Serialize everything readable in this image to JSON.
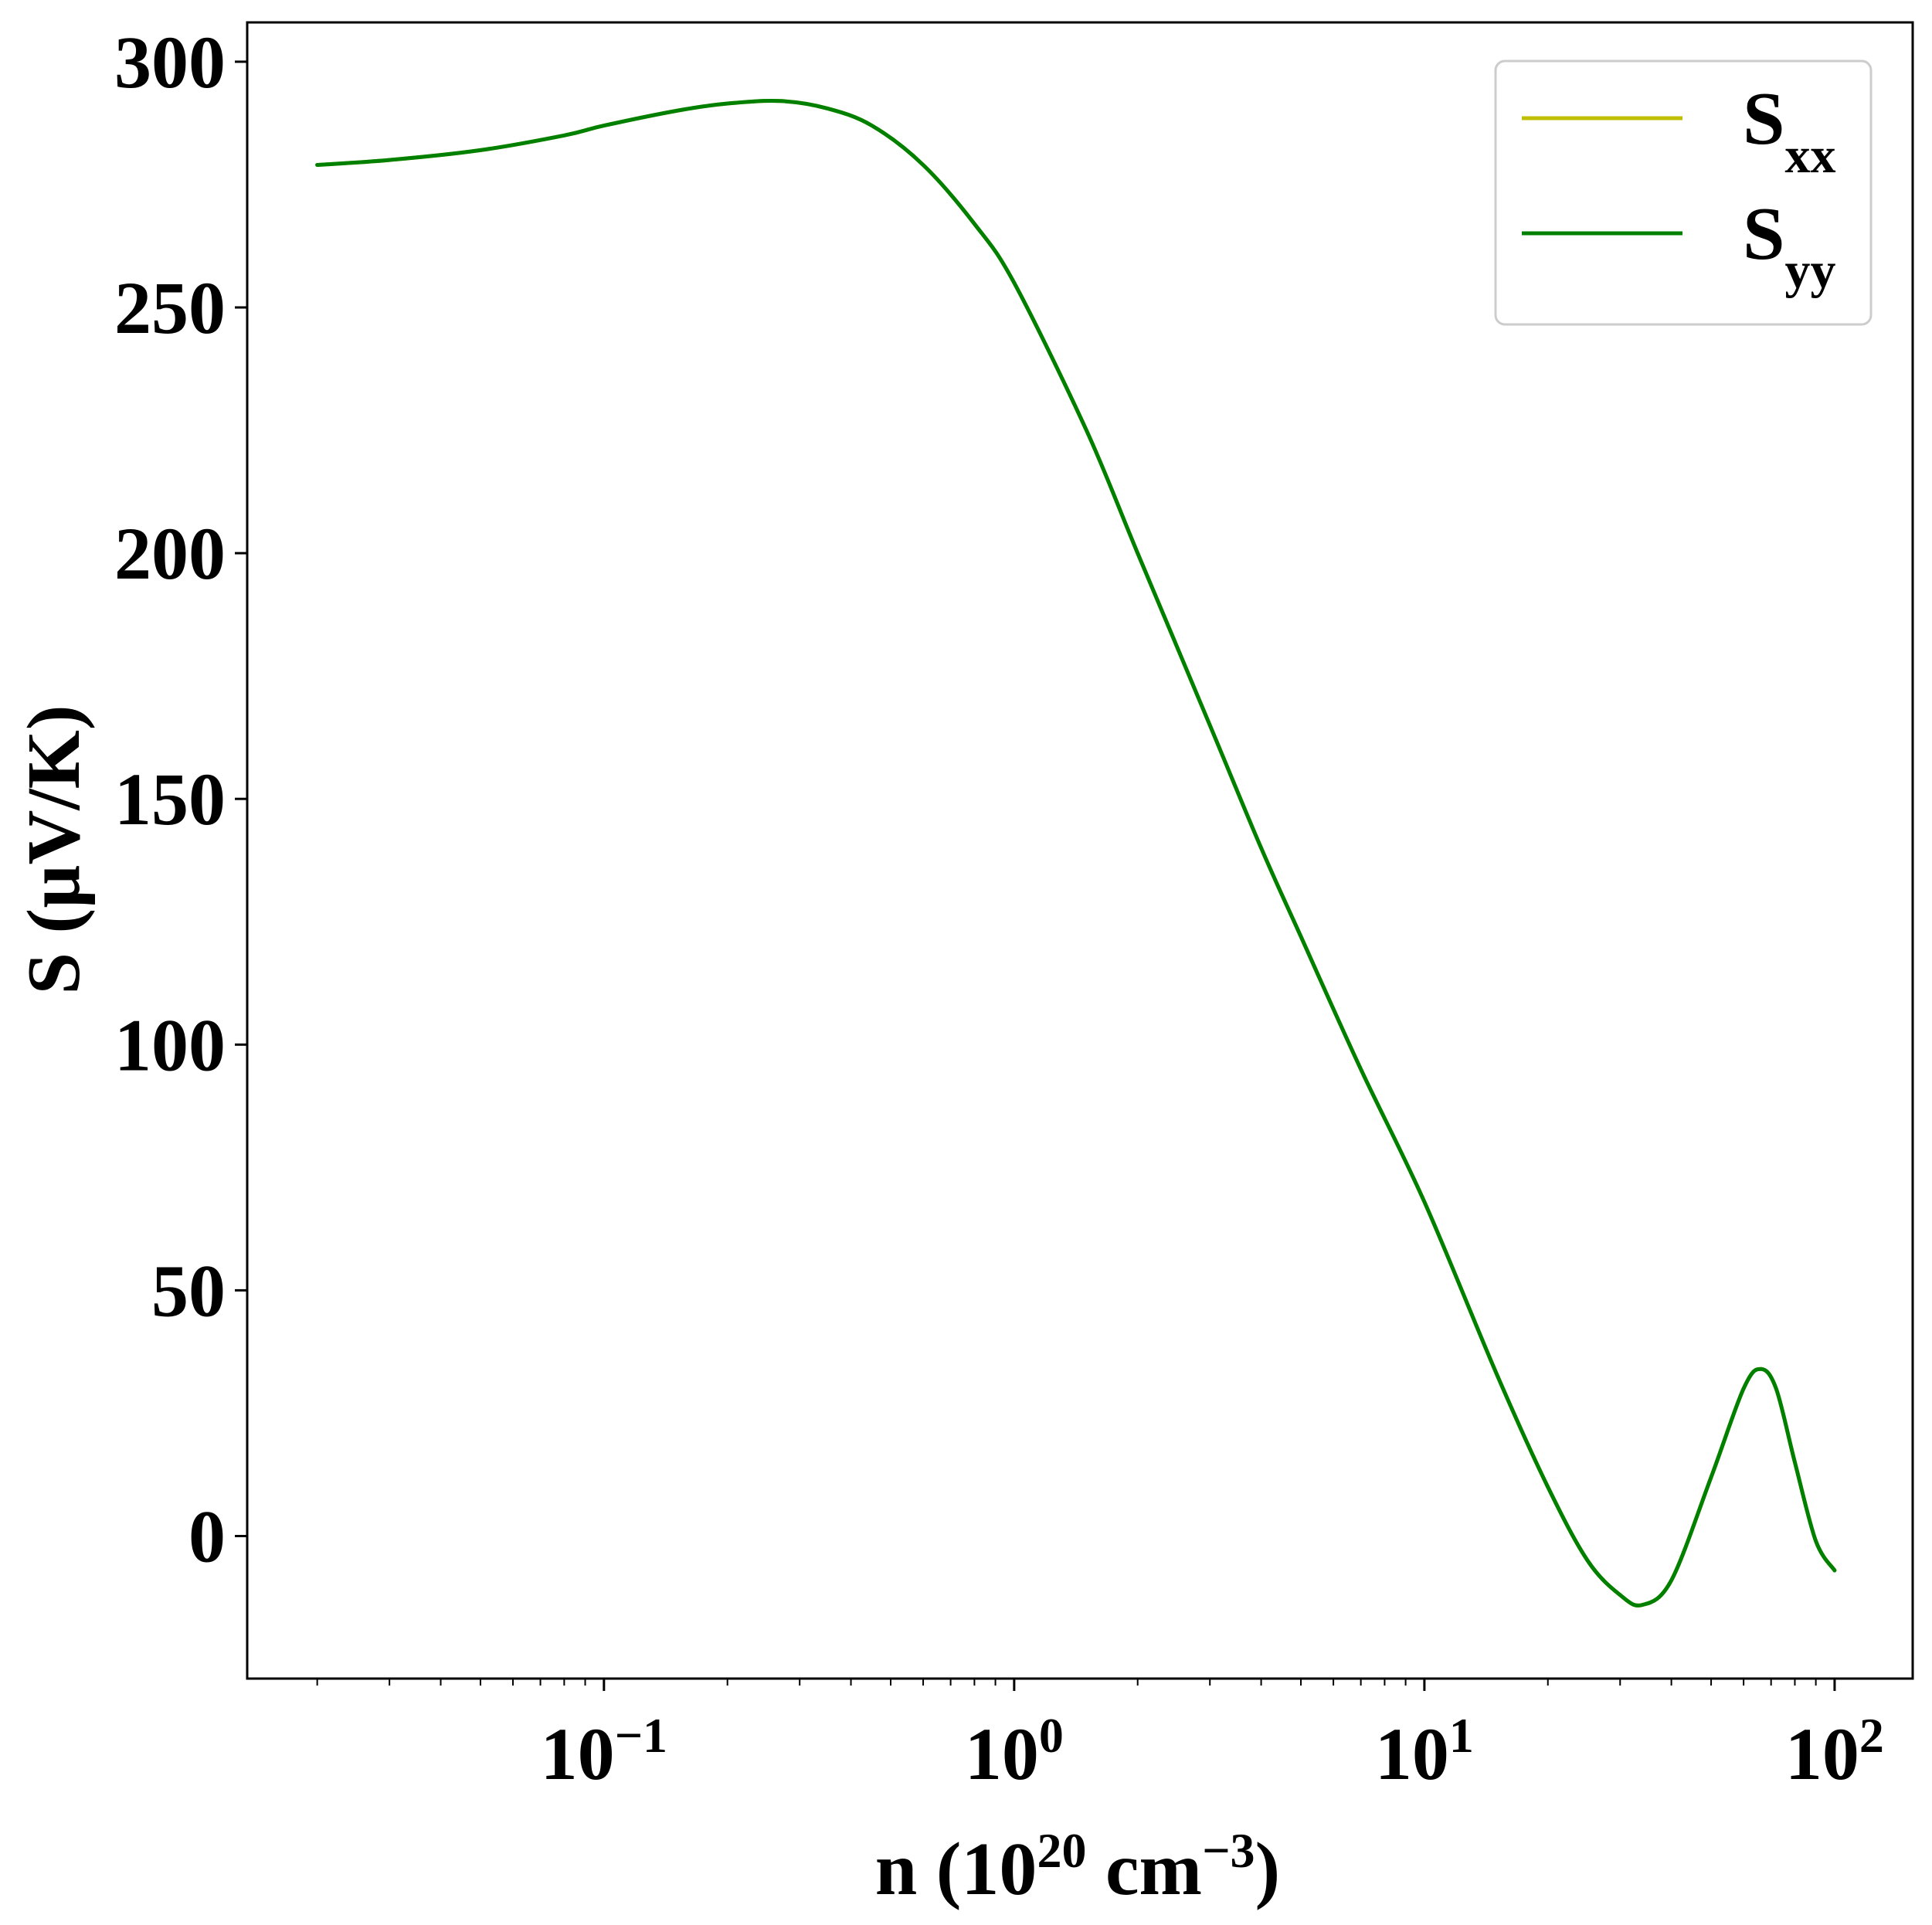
{
  "chart_data": {
    "type": "line",
    "title": "",
    "xlabel": {
      "base": "n (10",
      "exp1": "20",
      "mid": " cm",
      "exp2": "−3",
      "end": ")"
    },
    "ylabel": "S (µV/K)",
    "xscale": "log",
    "xlim": [
      0.0135,
      155
    ],
    "ylim": [
      -29,
      308
    ],
    "grid": false,
    "legend_position": "top-right",
    "x_ticks": [
      {
        "value": 0.1,
        "base": "10",
        "exp": "−1"
      },
      {
        "value": 1,
        "base": "10",
        "exp": "0"
      },
      {
        "value": 10,
        "base": "10",
        "exp": "1"
      },
      {
        "value": 100,
        "base": "10",
        "exp": "2"
      }
    ],
    "y_ticks": [
      {
        "value": 0,
        "label": "0"
      },
      {
        "value": 50,
        "label": "50"
      },
      {
        "value": 100,
        "label": "100"
      },
      {
        "value": 150,
        "label": "150"
      },
      {
        "value": 200,
        "label": "200"
      },
      {
        "value": 250,
        "label": "250"
      },
      {
        "value": 300,
        "label": "300"
      }
    ],
    "series": [
      {
        "name": "S",
        "subscript": "xx",
        "color": "#bfbf00",
        "x": [
          0.02,
          0.03,
          0.05,
          0.08,
          0.1,
          0.15,
          0.2,
          0.27,
          0.35,
          0.45,
          0.6,
          0.8,
          1.0,
          1.5,
          2.0,
          3.0,
          4.0,
          5.0,
          7.0,
          10.0,
          15.0,
          20.0,
          25.0,
          30.0,
          34.0,
          40.0,
          50.0,
          60.0,
          66.0,
          72.0,
          80.0,
          90.0,
          100.0
        ],
        "y": [
          279,
          280,
          282,
          285,
          287,
          290,
          291.5,
          292,
          290.5,
          287,
          279,
          267,
          255,
          225,
          200,
          165,
          140,
          122,
          95,
          68,
          33,
          10,
          -5,
          -12,
          -14,
          -9,
          12,
          30,
          34,
          30,
          15,
          -1,
          -7
        ]
      },
      {
        "name": "S",
        "subscript": "yy",
        "color": "#008000",
        "x": [
          0.02,
          0.03,
          0.05,
          0.08,
          0.1,
          0.15,
          0.2,
          0.27,
          0.35,
          0.45,
          0.6,
          0.8,
          1.0,
          1.5,
          2.0,
          3.0,
          4.0,
          5.0,
          7.0,
          10.0,
          15.0,
          20.0,
          25.0,
          30.0,
          34.0,
          40.0,
          50.0,
          60.0,
          66.0,
          72.0,
          80.0,
          90.0,
          100.0
        ],
        "y": [
          279,
          280,
          282,
          285,
          287,
          290,
          291.5,
          292,
          290.5,
          287,
          279,
          267,
          255,
          225,
          200,
          165,
          140,
          122,
          95,
          68,
          33,
          10,
          -5,
          -12,
          -14,
          -9,
          12,
          30,
          34,
          30,
          15,
          -1,
          -7
        ]
      }
    ]
  }
}
